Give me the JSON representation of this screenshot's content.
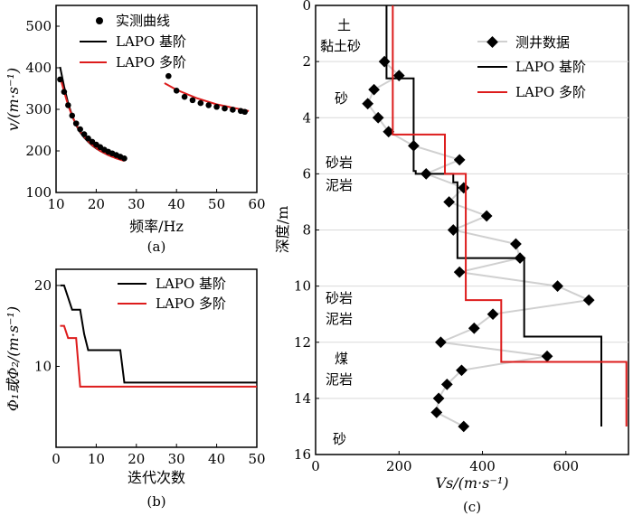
{
  "colors": {
    "black": "#000000",
    "red": "#dd1c1c",
    "gray": "#d0d0d0",
    "grid": "#d9d9d9"
  },
  "chart_data": [
    {
      "id": "a",
      "type": "scatter",
      "caption": "(a)",
      "xlabel": "频率/Hz",
      "ylabel": "v/(m·s⁻¹)",
      "xlim": [
        10,
        60
      ],
      "ylim": [
        100,
        550
      ],
      "xticks": [
        10,
        20,
        30,
        40,
        50,
        60
      ],
      "yticks": [
        100,
        200,
        300,
        400,
        500
      ],
      "legend": [
        "实测曲线",
        "LAPO 基阶",
        "LAPO 多阶"
      ],
      "measured_low": [
        [
          11,
          372
        ],
        [
          12,
          342
        ],
        [
          13,
          310
        ],
        [
          14,
          285
        ],
        [
          15,
          266
        ],
        [
          16,
          252
        ],
        [
          17,
          240
        ],
        [
          18,
          230
        ],
        [
          19,
          222
        ],
        [
          20,
          215
        ],
        [
          21,
          209
        ],
        [
          22,
          203
        ],
        [
          23,
          198
        ],
        [
          24,
          194
        ],
        [
          25,
          190
        ],
        [
          26,
          186
        ],
        [
          27,
          182
        ]
      ],
      "measured_high": [
        [
          38,
          380
        ],
        [
          40,
          345
        ],
        [
          42,
          330
        ],
        [
          44,
          322
        ],
        [
          46,
          315
        ],
        [
          48,
          310
        ],
        [
          50,
          306
        ],
        [
          52,
          302
        ],
        [
          54,
          299
        ],
        [
          56,
          296
        ],
        [
          57,
          294
        ]
      ],
      "series": [
        {
          "name": "LAPO 基阶",
          "x": [
            11,
            12,
            13,
            14,
            15,
            16,
            17,
            18,
            19,
            20,
            21,
            22,
            23,
            24,
            25,
            26,
            27
          ],
          "values": [
            402,
            355,
            315,
            285,
            262,
            245,
            232,
            222,
            213,
            206,
            200,
            195,
            190,
            186,
            183,
            180,
            178
          ]
        },
        {
          "name": "LAPO 多阶",
          "x": [
            11,
            12,
            13,
            14,
            15,
            16,
            17,
            18,
            19,
            20,
            21,
            22,
            23,
            24,
            25,
            26,
            27
          ],
          "values": [
            378,
            343,
            310,
            284,
            263,
            247,
            234,
            223,
            214,
            207,
            200,
            195,
            190,
            186,
            182,
            179,
            176
          ]
        },
        {
          "name": "LAPO 多阶 (高阶)",
          "x": [
            37,
            40,
            45,
            50,
            55,
            58
          ],
          "values": [
            363,
            347,
            327,
            312,
            302,
            296
          ]
        }
      ]
    },
    {
      "id": "b",
      "type": "line",
      "caption": "(b)",
      "xlabel": "迭代次数",
      "ylabel": "Φ₁或Φ₂/(m·s⁻¹)",
      "xlim": [
        0,
        50
      ],
      "ylim": [
        0,
        22
      ],
      "xticks": [
        0,
        10,
        20,
        30,
        40,
        50
      ],
      "yticks": [
        10,
        20
      ],
      "legend": [
        "LAPO 基阶",
        "LAPO 多阶"
      ],
      "series": [
        {
          "name": "LAPO 基阶",
          "x": [
            1,
            2,
            3,
            4,
            5,
            6,
            7,
            8,
            9,
            16,
            17,
            18,
            50
          ],
          "values": [
            20,
            20,
            18.5,
            17,
            17,
            17,
            14,
            12,
            12,
            12,
            8,
            8,
            8
          ]
        },
        {
          "name": "LAPO 多阶",
          "x": [
            1,
            2,
            3,
            4,
            5,
            6,
            7,
            50
          ],
          "values": [
            15,
            15,
            13.5,
            13.5,
            13.5,
            7.5,
            7.5,
            7.5
          ]
        }
      ]
    },
    {
      "id": "c",
      "type": "line",
      "caption": "(c)",
      "xlabel": "Vs/(m·s⁻¹)",
      "ylabel": "深度/m",
      "xlim": [
        0,
        750
      ],
      "ylim": [
        0,
        16
      ],
      "xticks": [
        0,
        200,
        400,
        600
      ],
      "yticks": [
        0,
        2,
        4,
        6,
        8,
        10,
        12,
        14,
        16
      ],
      "legend": [
        "测井数据",
        "LAPO 基阶",
        "LAPO 多阶"
      ],
      "well_data": [
        [
          165,
          2
        ],
        [
          200,
          2.5
        ],
        [
          140,
          3
        ],
        [
          125,
          3.5
        ],
        [
          150,
          4
        ],
        [
          175,
          4.5
        ],
        [
          235,
          5
        ],
        [
          345,
          5.5
        ],
        [
          265,
          6
        ],
        [
          355,
          6.5
        ],
        [
          320,
          7
        ],
        [
          410,
          7.5
        ],
        [
          330,
          8
        ],
        [
          480,
          8.5
        ],
        [
          490,
          9
        ],
        [
          345,
          9.5
        ],
        [
          580,
          10
        ],
        [
          655,
          10.5
        ],
        [
          425,
          11
        ],
        [
          380,
          11.5
        ],
        [
          300,
          12
        ],
        [
          555,
          12.5
        ],
        [
          350,
          13
        ],
        [
          315,
          13.5
        ],
        [
          295,
          14
        ],
        [
          290,
          14.5
        ],
        [
          355,
          15
        ]
      ],
      "series": [
        {
          "name": "LAPO 基阶",
          "x": [
            170,
            170,
            235,
            235,
            240,
            240,
            330,
            330,
            340,
            340,
            500,
            500,
            685,
            685
          ],
          "values": [
            0,
            2.6,
            2.6,
            5.9,
            5.9,
            6.0,
            6.0,
            6.3,
            6.3,
            9.0,
            9.0,
            11.8,
            11.8,
            15
          ]
        },
        {
          "name": "LAPO 多阶",
          "x": [
            185,
            185,
            310,
            310,
            360,
            360,
            445,
            445,
            745,
            745
          ],
          "values": [
            0,
            4.6,
            4.6,
            6.0,
            6.0,
            10.5,
            10.5,
            12.7,
            12.7,
            15
          ]
        }
      ],
      "lithology": [
        "土",
        "黏土砂",
        "砂",
        "砂岩",
        "泥岩",
        "砂岩",
        "泥岩",
        "煤",
        "泥岩",
        "砂"
      ]
    }
  ]
}
